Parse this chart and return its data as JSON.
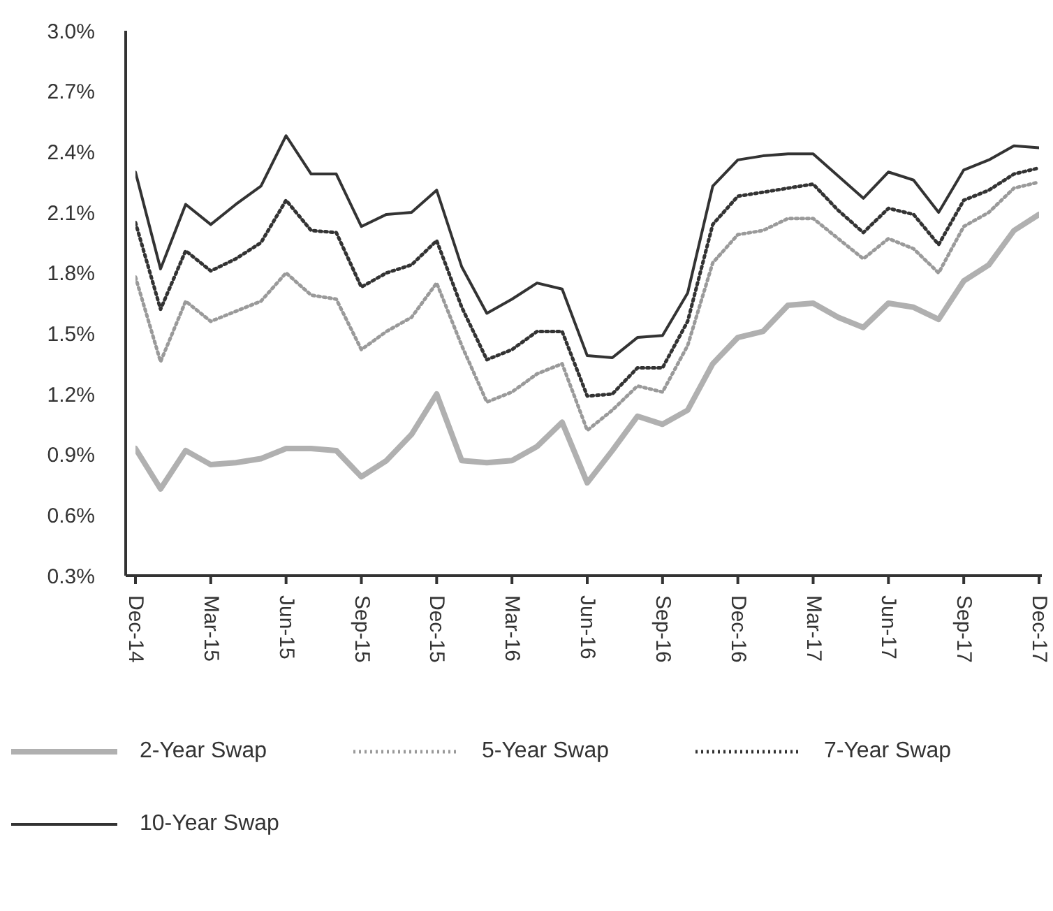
{
  "chart_data": {
    "type": "line",
    "categories": [
      "Dec-14",
      null,
      null,
      "Mar-15",
      null,
      null,
      "Jun-15",
      null,
      null,
      "Sep-15",
      null,
      null,
      "Dec-15",
      null,
      null,
      "Mar-16",
      null,
      null,
      "Jun-16",
      null,
      null,
      "Sep-16",
      null,
      null,
      "Dec-16",
      null,
      null,
      "Mar-17",
      null,
      null,
      "Jun-17",
      null,
      null,
      "Sep-17",
      null,
      null,
      "Dec-17"
    ],
    "series": [
      {
        "name": "2-Year Swap",
        "color": "#b0b0b0",
        "line_style": "solid",
        "values": [
          0.93,
          0.73,
          0.92,
          0.85,
          0.86,
          0.88,
          0.93,
          0.93,
          0.92,
          0.79,
          0.87,
          1.0,
          1.2,
          0.87,
          0.86,
          0.87,
          0.94,
          1.06,
          0.76,
          0.92,
          1.09,
          1.05,
          1.12,
          1.35,
          1.48,
          1.51,
          1.64,
          1.65,
          1.58,
          1.53,
          1.65,
          1.63,
          1.57,
          1.76,
          1.84,
          2.01,
          2.09
        ]
      },
      {
        "name": "5-Year Swap",
        "color": "#9a9a9a",
        "line_style": "dotted",
        "values": [
          1.78,
          1.36,
          1.66,
          1.56,
          1.61,
          1.66,
          1.8,
          1.69,
          1.67,
          1.42,
          1.51,
          1.58,
          1.75,
          1.44,
          1.16,
          1.21,
          1.3,
          1.35,
          1.02,
          1.12,
          1.24,
          1.21,
          1.44,
          1.85,
          1.99,
          2.01,
          2.07,
          2.07,
          1.97,
          1.87,
          1.97,
          1.92,
          1.8,
          2.03,
          2.1,
          2.22,
          2.25
        ]
      },
      {
        "name": "7-Year Swap",
        "color": "#333333",
        "line_style": "dotted",
        "values": [
          2.05,
          1.62,
          1.91,
          1.81,
          1.87,
          1.95,
          2.16,
          2.01,
          2.0,
          1.73,
          1.8,
          1.84,
          1.96,
          1.63,
          1.37,
          1.42,
          1.51,
          1.51,
          1.19,
          1.2,
          1.33,
          1.33,
          1.56,
          2.04,
          2.18,
          2.2,
          2.22,
          2.24,
          2.11,
          2.0,
          2.12,
          2.09,
          1.94,
          2.16,
          2.21,
          2.29,
          2.32
        ]
      },
      {
        "name": "10-Year Swap",
        "color": "#333333",
        "line_style": "solid",
        "values": [
          2.3,
          1.82,
          2.14,
          2.04,
          2.14,
          2.23,
          2.48,
          2.29,
          2.29,
          2.03,
          2.09,
          2.1,
          2.21,
          1.83,
          1.6,
          1.67,
          1.75,
          1.72,
          1.39,
          1.38,
          1.48,
          1.49,
          1.7,
          2.23,
          2.36,
          2.38,
          2.39,
          2.39,
          2.28,
          2.17,
          2.3,
          2.26,
          2.1,
          2.31,
          2.36,
          2.43,
          2.42
        ]
      }
    ],
    "ylim": [
      0.3,
      3.0
    ],
    "yticks": [
      {
        "value": 0.3,
        "label": "0.3%"
      },
      {
        "value": 0.6,
        "label": "0.6%"
      },
      {
        "value": 0.9,
        "label": "0.9%"
      },
      {
        "value": 1.2,
        "label": "1.2%"
      },
      {
        "value": 1.5,
        "label": "1.5%"
      },
      {
        "value": 1.8,
        "label": "1.8%"
      },
      {
        "value": 2.1,
        "label": "2.1%"
      },
      {
        "value": 2.4,
        "label": "2.4%"
      },
      {
        "value": 2.7,
        "label": "2.7%"
      },
      {
        "value": 3.0,
        "label": "3.0%"
      }
    ],
    "grid": false,
    "legend": "bottom",
    "marker": "none"
  }
}
